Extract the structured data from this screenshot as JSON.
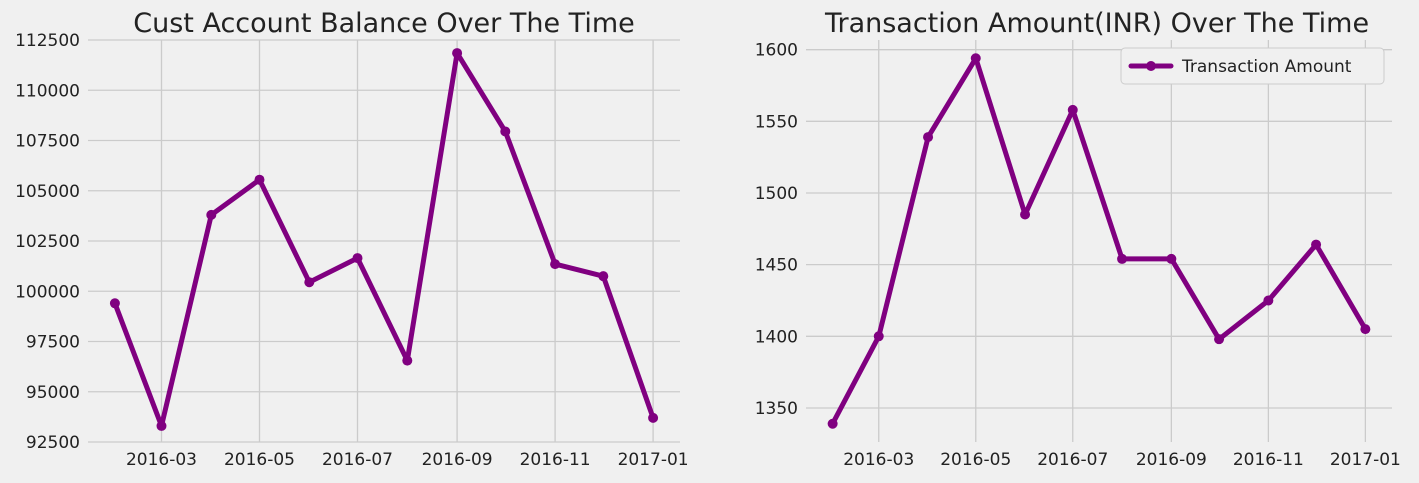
{
  "chart_data": [
    {
      "type": "line",
      "title": "Cust Account Balance Over The Time",
      "xlabel": "",
      "ylabel": "",
      "x": [
        "2016-02-01",
        "2016-03-01",
        "2016-04-01",
        "2016-05-01",
        "2016-06-01",
        "2016-07-01",
        "2016-08-01",
        "2016-09-01",
        "2016-10-01",
        "2016-11-01",
        "2016-12-01",
        "2017-01-01"
      ],
      "series": [
        {
          "values": [
            99400,
            93300,
            103800,
            105550,
            100450,
            101650,
            96550,
            111850,
            107950,
            101350,
            100750,
            93700
          ]
        }
      ],
      "color": "#800080",
      "ylim": [
        92500,
        112500
      ],
      "yticks": [
        92500,
        95000,
        97500,
        100000,
        102500,
        105000,
        107500,
        110000,
        112500
      ],
      "ytick_labels": [
        "92500",
        "95000",
        "97500",
        "100000",
        "102500",
        "105000",
        "107500",
        "110000",
        "112500"
      ],
      "xticks": [
        "2016-03-01",
        "2016-05-01",
        "2016-07-01",
        "2016-09-01",
        "2016-11-01",
        "2017-01-01"
      ],
      "xtick_labels": [
        "2016-03",
        "2016-05",
        "2016-07",
        "2016-09",
        "2016-11",
        "2017-01"
      ],
      "grid": true,
      "legend": null
    },
    {
      "type": "line",
      "title": "Transaction Amount(INR) Over The Time",
      "xlabel": "",
      "ylabel": "",
      "x": [
        "2016-02-01",
        "2016-03-01",
        "2016-04-01",
        "2016-05-01",
        "2016-06-01",
        "2016-07-01",
        "2016-08-01",
        "2016-09-01",
        "2016-10-01",
        "2016-11-01",
        "2016-12-01",
        "2017-01-01"
      ],
      "series": [
        {
          "name": "Transaction Amount",
          "values": [
            1339,
            1400,
            1539,
            1594,
            1485,
            1558,
            1454,
            1454,
            1398,
            1425,
            1464,
            1405
          ]
        }
      ],
      "color": "#800080",
      "ylim": [
        1350,
        1600
      ],
      "yticks": [
        1350,
        1400,
        1450,
        1500,
        1550,
        1600
      ],
      "ytick_labels": [
        "1350",
        "1400",
        "1450",
        "1500",
        "1550",
        "1600"
      ],
      "xticks": [
        "2016-03-01",
        "2016-05-01",
        "2016-07-01",
        "2016-09-01",
        "2016-11-01",
        "2017-01-01"
      ],
      "xtick_labels": [
        "2016-03",
        "2016-05",
        "2016-07",
        "2016-09",
        "2016-11",
        "2017-01"
      ],
      "grid": true,
      "legend": "top-right"
    }
  ]
}
